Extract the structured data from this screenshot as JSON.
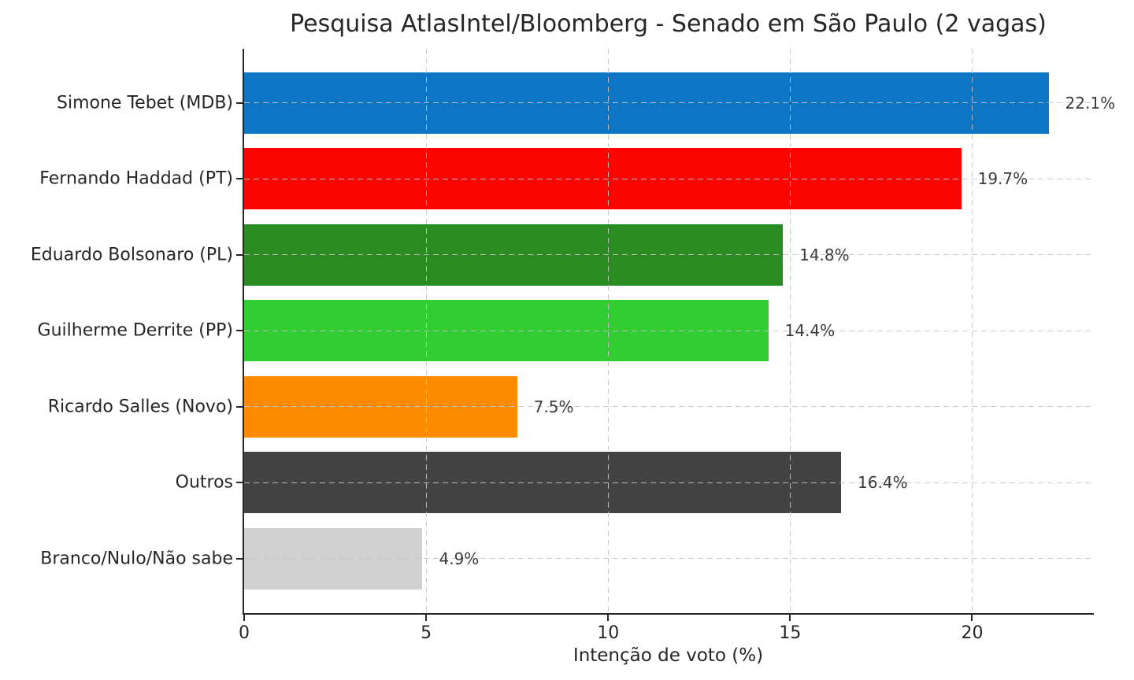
{
  "chart_data": {
    "type": "bar",
    "orientation": "horizontal",
    "title": "Pesquisa AtlasIntel/Bloomberg - Senado em São Paulo (2 vagas)",
    "xlabel": "Intenção de voto (%)",
    "ylabel": "",
    "xlim": [
      0,
      23.3
    ],
    "xticks": [
      0,
      5,
      10,
      15,
      20
    ],
    "grid": true,
    "grid_style": "dashed",
    "legend": false,
    "categories": [
      "Simone Tebet (MDB)",
      "Fernando Haddad (PT)",
      "Eduardo Bolsonaro (PL)",
      "Guilherme Derrite (PP)",
      "Ricardo Salles (Novo)",
      "Outros",
      "Branco/Nulo/Não sabe"
    ],
    "values": [
      22.1,
      19.7,
      14.8,
      14.4,
      7.5,
      16.4,
      4.9
    ],
    "value_labels": [
      "22.1%",
      "19.7%",
      "14.8%",
      "14.4%",
      "7.5%",
      "16.4%",
      "4.9%"
    ],
    "bar_colors": [
      "#0c76c4",
      "#fb0503",
      "#2a8b22",
      "#32cd32",
      "#ff8c00",
      "#434343",
      "#d1d1d1"
    ],
    "colors": {
      "text": "#262626",
      "value_label": "#3a3a3a",
      "grid": "#c5c5c5",
      "spine": "#262626",
      "background": "#ffffff"
    }
  }
}
